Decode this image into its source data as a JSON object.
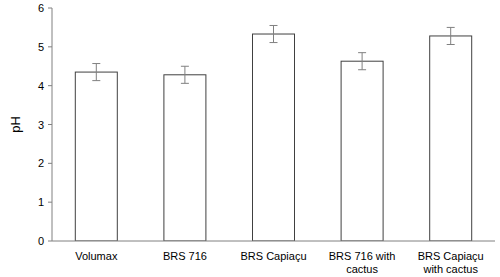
{
  "chart_data": {
    "type": "bar",
    "y_label": "pH",
    "categories": [
      "Volumax",
      "BRS 716",
      "BRS Capiaçu",
      "BRS 716 with cactus",
      "BRS Capiaçu with cactus"
    ],
    "values": [
      4.35,
      4.28,
      5.33,
      4.63,
      5.28
    ],
    "error": [
      0.22,
      0.22,
      0.22,
      0.22,
      0.22
    ],
    "color": "#ffffff",
    "ylim": [
      0,
      6
    ],
    "yticks": [
      0,
      1,
      2,
      3,
      4,
      5,
      6
    ],
    "grid": false
  }
}
